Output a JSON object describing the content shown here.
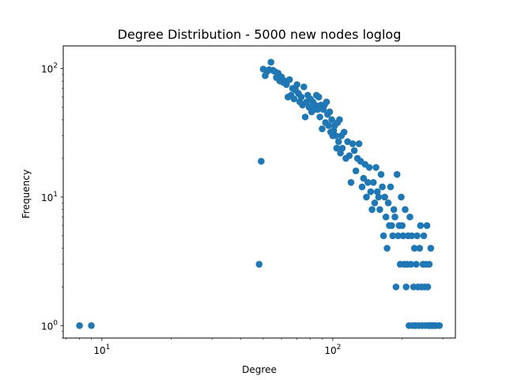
{
  "chart_data": {
    "type": "scatter",
    "title": "Degree Distribution - 5000 new nodes loglog",
    "xlabel": "Degree",
    "ylabel": "Frequency",
    "xscale": "log",
    "yscale": "log",
    "xlim": [
      6.8,
      340
    ],
    "ylim": [
      0.8,
      150
    ],
    "xticks": [
      {
        "value": 10,
        "label": "10^1"
      },
      {
        "value": 100,
        "label": "10^2"
      }
    ],
    "yticks": [
      {
        "value": 1,
        "label": "10^0"
      },
      {
        "value": 10,
        "label": "10^1"
      },
      {
        "value": 100,
        "label": "10^2"
      }
    ],
    "grid": false,
    "marker_color": "#1f77b4",
    "points": [
      [
        8,
        1
      ],
      [
        9,
        1
      ],
      [
        48,
        3
      ],
      [
        49,
        19
      ],
      [
        50,
        99
      ],
      [
        51,
        88
      ],
      [
        52,
        95
      ],
      [
        53,
        98
      ],
      [
        54,
        112
      ],
      [
        55,
        97
      ],
      [
        56,
        95
      ],
      [
        57,
        85
      ],
      [
        58,
        92
      ],
      [
        59,
        80
      ],
      [
        60,
        86
      ],
      [
        61,
        78
      ],
      [
        62,
        80
      ],
      [
        63,
        75
      ],
      [
        64,
        60
      ],
      [
        65,
        82
      ],
      [
        66,
        62
      ],
      [
        67,
        70
      ],
      [
        68,
        58
      ],
      [
        69,
        68
      ],
      [
        70,
        75
      ],
      [
        71,
        64
      ],
      [
        72,
        55
      ],
      [
        73,
        60
      ],
      [
        74,
        52
      ],
      [
        75,
        72
      ],
      [
        76,
        42
      ],
      [
        77,
        55
      ],
      [
        78,
        62
      ],
      [
        79,
        50
      ],
      [
        80,
        58
      ],
      [
        81,
        46
      ],
      [
        82,
        55
      ],
      [
        83,
        48
      ],
      [
        84,
        52
      ],
      [
        85,
        62
      ],
      [
        86,
        48
      ],
      [
        87,
        60
      ],
      [
        88,
        42
      ],
      [
        89,
        52
      ],
      [
        90,
        34
      ],
      [
        91,
        48
      ],
      [
        92,
        52
      ],
      [
        93,
        38
      ],
      [
        94,
        55
      ],
      [
        95,
        44
      ],
      [
        96,
        36
      ],
      [
        97,
        46
      ],
      [
        98,
        32
      ],
      [
        99,
        40
      ],
      [
        100,
        30
      ],
      [
        101,
        33
      ],
      [
        102,
        36
      ],
      [
        103,
        30
      ],
      [
        104,
        24
      ],
      [
        105,
        38
      ],
      [
        106,
        27
      ],
      [
        107,
        40
      ],
      [
        108,
        22
      ],
      [
        109,
        30
      ],
      [
        110,
        24
      ],
      [
        112,
        32
      ],
      [
        114,
        20
      ],
      [
        116,
        27
      ],
      [
        118,
        21
      ],
      [
        120,
        13
      ],
      [
        122,
        26
      ],
      [
        124,
        23
      ],
      [
        126,
        16
      ],
      [
        128,
        20
      ],
      [
        130,
        26
      ],
      [
        132,
        19
      ],
      [
        134,
        12
      ],
      [
        136,
        14
      ],
      [
        138,
        18
      ],
      [
        140,
        10
      ],
      [
        142,
        13
      ],
      [
        144,
        17
      ],
      [
        146,
        11
      ],
      [
        148,
        8
      ],
      [
        150,
        13
      ],
      [
        152,
        9
      ],
      [
        154,
        17
      ],
      [
        156,
        11
      ],
      [
        158,
        10
      ],
      [
        160,
        8
      ],
      [
        162,
        15
      ],
      [
        164,
        12
      ],
      [
        166,
        5
      ],
      [
        168,
        10
      ],
      [
        170,
        7
      ],
      [
        172,
        4
      ],
      [
        174,
        9
      ],
      [
        176,
        6
      ],
      [
        178,
        12
      ],
      [
        180,
        6
      ],
      [
        182,
        5
      ],
      [
        184,
        8
      ],
      [
        186,
        7
      ],
      [
        188,
        2
      ],
      [
        190,
        15
      ],
      [
        192,
        5
      ],
      [
        194,
        6
      ],
      [
        196,
        3
      ],
      [
        198,
        10
      ],
      [
        200,
        6
      ],
      [
        202,
        5
      ],
      [
        204,
        3
      ],
      [
        206,
        8
      ],
      [
        208,
        2
      ],
      [
        210,
        3
      ],
      [
        212,
        5
      ],
      [
        214,
        1
      ],
      [
        216,
        7
      ],
      [
        218,
        3
      ],
      [
        220,
        5
      ],
      [
        222,
        1
      ],
      [
        224,
        2
      ],
      [
        226,
        4
      ],
      [
        228,
        1
      ],
      [
        230,
        3
      ],
      [
        232,
        5
      ],
      [
        234,
        2
      ],
      [
        236,
        1
      ],
      [
        238,
        4
      ],
      [
        240,
        6
      ],
      [
        242,
        2
      ],
      [
        244,
        1
      ],
      [
        246,
        3
      ],
      [
        248,
        5
      ],
      [
        250,
        2
      ],
      [
        252,
        1
      ],
      [
        254,
        3
      ],
      [
        256,
        6
      ],
      [
        258,
        2
      ],
      [
        260,
        1
      ],
      [
        262,
        3
      ],
      [
        264,
        1
      ],
      [
        266,
        4
      ],
      [
        268,
        1
      ],
      [
        270,
        1
      ],
      [
        275,
        1
      ],
      [
        280,
        1
      ],
      [
        290,
        1
      ]
    ]
  }
}
